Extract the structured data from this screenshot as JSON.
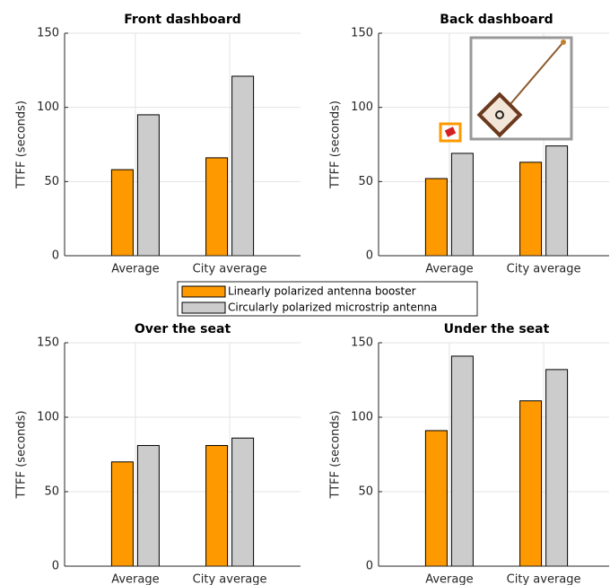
{
  "chart_data": [
    {
      "type": "bar",
      "title": "Front dashboard",
      "ylabel": "TTFF (seconds)",
      "categories": [
        "Average",
        "City average"
      ],
      "series": [
        {
          "name": "Linearly polarized antenna booster",
          "color": "#ff9900",
          "values": [
            58,
            66
          ]
        },
        {
          "name": "Circularly polarized microstrip antenna",
          "color": "#cccccc",
          "values": [
            95,
            121
          ]
        }
      ],
      "ylim": [
        0,
        150
      ],
      "yticks": [
        0,
        50,
        100,
        150
      ],
      "grid": true
    },
    {
      "type": "bar",
      "title": "Back dashboard",
      "ylabel": "TTFF (seconds)",
      "categories": [
        "Average",
        "City average"
      ],
      "series": [
        {
          "name": "Linearly polarized antenna booster",
          "color": "#ff9900",
          "values": [
            52,
            63
          ]
        },
        {
          "name": "Circularly polarized microstrip antenna",
          "color": "#cccccc",
          "values": [
            69,
            74
          ]
        }
      ],
      "ylim": [
        0,
        150
      ],
      "yticks": [
        0,
        50,
        100,
        150
      ],
      "grid": true
    },
    {
      "type": "bar",
      "title": "Over the seat",
      "ylabel": "TTFF (seconds)",
      "categories": [
        "Average",
        "City average"
      ],
      "series": [
        {
          "name": "Linearly polarized antenna booster",
          "color": "#ff9900",
          "values": [
            70,
            81
          ]
        },
        {
          "name": "Circularly polarized microstrip antenna",
          "color": "#cccccc",
          "values": [
            81,
            86
          ]
        }
      ],
      "ylim": [
        0,
        150
      ],
      "yticks": [
        0,
        50,
        100,
        150
      ],
      "grid": true
    },
    {
      "type": "bar",
      "title": "Under the seat",
      "ylabel": "TTFF (seconds)",
      "categories": [
        "Average",
        "City average"
      ],
      "series": [
        {
          "name": "Linearly polarized antenna booster",
          "color": "#ff9900",
          "values": [
            91,
            111
          ]
        },
        {
          "name": "Circularly polarized microstrip antenna",
          "color": "#cccccc",
          "values": [
            141,
            132
          ]
        }
      ],
      "ylim": [
        0,
        150
      ],
      "yticks": [
        0,
        50,
        100,
        150
      ],
      "grid": true
    }
  ]
}
